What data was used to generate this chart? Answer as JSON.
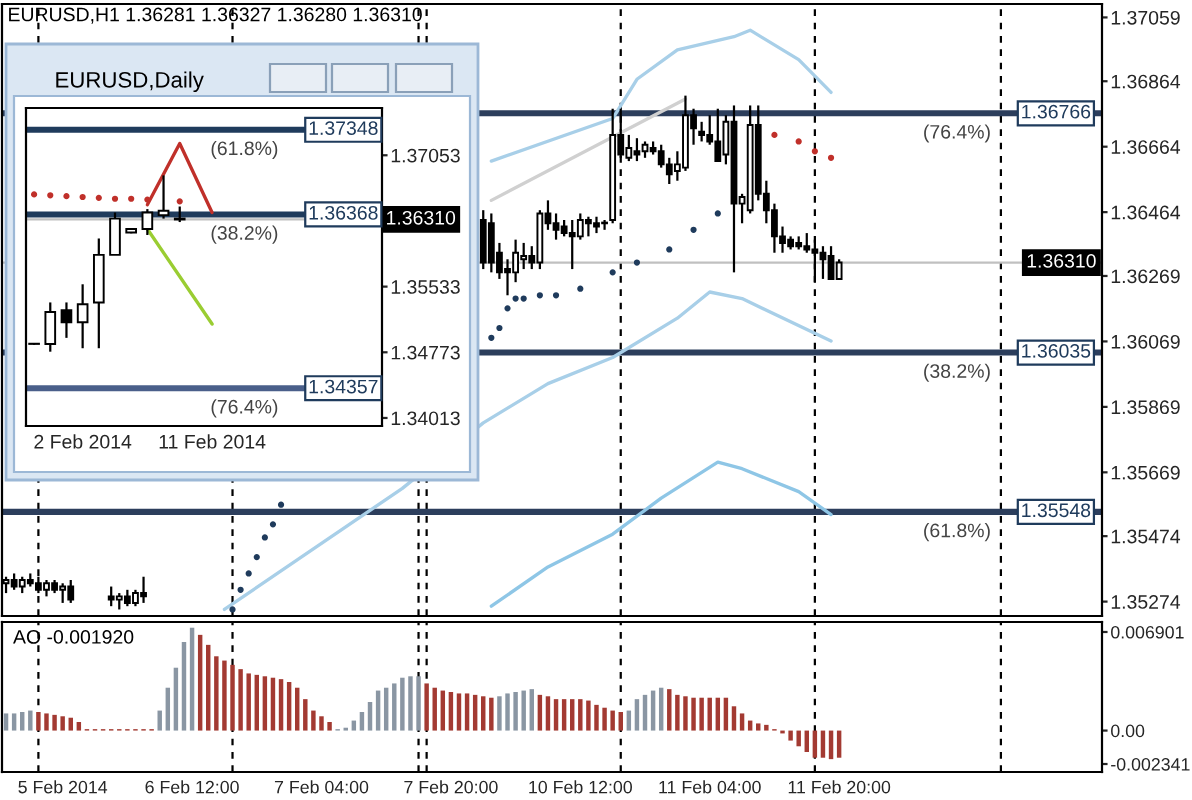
{
  "chart_data": [
    {
      "type": "candlestick",
      "title": "EURUSD,H1 1.36281 1.36327 1.36280 1.36310",
      "categories": [
        null,
        null,
        null,
        null,
        null,
        null,
        null,
        null,
        null,
        null,
        null,
        null,
        null,
        null,
        null,
        null,
        null,
        null,
        null,
        null,
        null,
        null,
        null,
        null,
        null,
        null,
        null,
        null,
        null,
        null,
        null,
        null,
        null,
        null,
        null,
        null,
        null,
        null,
        null,
        null,
        null,
        null,
        null,
        null,
        null,
        null,
        null,
        null,
        null,
        null,
        null,
        null,
        null,
        null,
        null,
        null,
        null,
        null,
        null,
        null,
        null,
        null,
        null,
        null,
        null,
        null,
        null,
        null,
        null,
        null,
        null,
        null,
        null,
        null,
        null,
        null,
        null,
        null,
        null,
        null,
        null,
        null,
        null,
        null,
        null,
        null,
        null,
        null,
        null,
        null,
        null,
        null,
        null,
        null,
        null,
        null,
        null,
        null,
        null,
        null,
        null,
        null,
        null,
        null,
        null,
        null,
        null,
        null,
        null,
        null,
        null,
        null,
        null,
        null,
        null,
        null,
        null,
        null,
        null,
        null,
        null,
        null,
        null,
        null,
        null,
        null,
        null,
        null,
        null,
        null,
        null,
        null,
        null,
        null,
        null,
        null
      ],
      "ohlc": [
        [
          1.3533,
          1.3535,
          1.353,
          1.3534
        ],
        [
          1.3534,
          1.3536,
          1.3531,
          1.3532
        ],
        [
          1.3532,
          1.3535,
          1.353,
          1.3534
        ],
        [
          1.3534,
          1.3536,
          1.3532,
          1.3533
        ],
        [
          1.3533,
          1.3535,
          1.353,
          1.3531
        ],
        [
          1.3531,
          1.3534,
          1.3529,
          1.3533
        ],
        [
          1.3533,
          1.3534,
          1.353,
          1.3531
        ],
        [
          1.3531,
          1.3533,
          1.3527,
          1.3532
        ],
        [
          1.3532,
          1.3534,
          1.3527,
          1.3528
        ],
        null,
        null,
        null,
        null,
        [
          1.3529,
          1.3532,
          1.3526,
          1.3528
        ],
        [
          1.3528,
          1.353,
          1.3525,
          1.3529
        ],
        [
          1.3529,
          1.3531,
          1.3526,
          1.3527
        ],
        [
          1.3527,
          1.3531,
          1.3526,
          1.353
        ],
        [
          1.353,
          1.3535,
          1.3527,
          1.3529
        ],
        null,
        null,
        null,
        null,
        null,
        null,
        null,
        null,
        null,
        null,
        null,
        null,
        null,
        null,
        null,
        null,
        null,
        null,
        null,
        null,
        null,
        null,
        null,
        null,
        null,
        null,
        null,
        null,
        null,
        null,
        null,
        null,
        null,
        null,
        null,
        null,
        null,
        null,
        null,
        null,
        null,
        [
          1.3644,
          1.3647,
          1.3629,
          1.3631
        ],
        [
          1.3643,
          1.3646,
          1.3628,
          1.3631
        ],
        [
          1.3634,
          1.3637,
          1.3626,
          1.3628
        ],
        [
          1.3629,
          1.3632,
          1.3621,
          1.3628
        ],
        [
          1.3628,
          1.3638,
          1.3625,
          1.3634
        ],
        [
          1.3632,
          1.3637,
          1.3629,
          1.3633
        ],
        [
          1.3633,
          1.3636,
          1.3629,
          1.3631
        ],
        [
          1.3631,
          1.3647,
          1.3629,
          1.3646
        ],
        [
          1.3646,
          1.365,
          1.3641,
          1.3643
        ],
        [
          1.3643,
          1.3646,
          1.3638,
          1.3641
        ],
        [
          1.3642,
          1.3644,
          1.3639,
          1.364
        ],
        [
          1.364,
          1.3644,
          1.3629,
          1.3639
        ],
        [
          1.3639,
          1.3646,
          1.3638,
          1.3644
        ],
        [
          1.3644,
          1.3645,
          1.3639,
          1.3643
        ],
        [
          1.3643,
          1.3645,
          1.364,
          1.3642
        ],
        [
          1.3643,
          1.3644,
          1.3641,
          1.3643
        ],
        [
          1.3644,
          1.3678,
          1.3643,
          1.367
        ],
        [
          1.367,
          1.3678,
          1.3663,
          1.3664
        ],
        [
          1.3663,
          1.367,
          1.3662,
          1.3666
        ],
        [
          1.3665,
          1.3669,
          1.3662,
          1.3664
        ],
        [
          1.3665,
          1.3668,
          1.3663,
          1.3667
        ],
        [
          1.3666,
          1.3668,
          1.3664,
          1.3665
        ],
        [
          1.3665,
          1.3667,
          1.366,
          1.3661
        ],
        [
          1.3661,
          1.3663,
          1.3655,
          1.3658
        ],
        [
          1.3659,
          1.3665,
          1.3656,
          1.3661
        ],
        [
          1.366,
          1.3682,
          1.3659,
          1.3676
        ],
        [
          1.3676,
          1.3678,
          1.3667,
          1.3672
        ],
        [
          1.3671,
          1.3674,
          1.3668,
          1.367
        ],
        [
          1.367,
          1.3676,
          1.3667,
          1.3668
        ],
        [
          1.3668,
          1.3678,
          1.3662,
          1.3662
        ],
        [
          1.3664,
          1.3676,
          1.3661,
          1.3674
        ],
        [
          1.3674,
          1.3679,
          1.3628,
          1.3649
        ],
        [
          1.3649,
          1.3652,
          1.3643,
          1.3651
        ],
        [
          1.3647,
          1.3679,
          1.3646,
          1.3673
        ],
        [
          1.3673,
          1.3679,
          1.365,
          1.3652
        ],
        [
          1.3652,
          1.3656,
          1.3643,
          1.3647
        ],
        [
          1.3647,
          1.3649,
          1.3634,
          1.3639
        ],
        [
          1.3639,
          1.3642,
          1.3634,
          1.3637
        ],
        [
          1.3638,
          1.3639,
          1.3635,
          1.3636
        ],
        [
          1.3637,
          1.3639,
          1.3635,
          1.3636
        ],
        [
          1.3636,
          1.364,
          1.3634,
          1.3635
        ],
        [
          1.3635,
          1.3638,
          1.3625,
          1.3634
        ],
        [
          1.3634,
          1.3636,
          1.3626,
          1.3632
        ],
        [
          1.3633,
          1.3636,
          1.3626,
          1.3626
        ],
        [
          1.3626,
          1.3632,
          1.3626,
          1.3631
        ],
        null,
        null,
        null,
        null,
        null,
        null,
        null,
        null,
        null,
        null,
        null,
        null,
        null,
        null,
        null,
        null,
        null,
        null,
        null,
        null,
        null,
        null,
        null,
        null,
        null,
        null,
        null,
        null,
        null,
        null,
        null,
        null
      ],
      "series": [
        {
          "type": "line",
          "color": "#d0d0d0",
          "values": [
            null,
            null,
            null,
            null,
            null,
            null,
            null,
            null,
            null,
            null,
            null,
            null,
            null,
            null,
            null,
            null,
            null,
            null,
            null,
            null,
            null,
            null,
            null,
            null,
            null,
            null,
            null,
            null,
            null,
            null,
            null,
            null,
            null,
            null,
            null,
            null,
            null,
            null,
            null,
            null,
            null,
            null,
            null,
            null,
            null,
            null,
            null,
            null,
            null,
            null,
            null,
            null,
            null,
            null,
            null,
            null,
            null,
            null,
            null,
            null,
            1.365,
            null,
            null,
            null,
            null,
            null,
            null,
            null,
            null,
            null,
            null,
            null,
            null,
            null,
            null,
            null,
            null,
            null,
            null,
            null,
            null,
            null,
            null,
            null,
            1.3681,
            null,
            null,
            null,
            null,
            null,
            null,
            null,
            null,
            null,
            null,
            null,
            null,
            null,
            null,
            null,
            null,
            null,
            null,
            null,
            null,
            null,
            null,
            null,
            null,
            null,
            null,
            null,
            null,
            null,
            null,
            null,
            null,
            null,
            null,
            null,
            null,
            null,
            null,
            null,
            null,
            null,
            null,
            null,
            null,
            null,
            null,
            null,
            null,
            null,
            null,
            null
          ]
        },
        {
          "type": "line",
          "color": "#a8cfe8",
          "values": [
            null,
            null,
            null,
            null,
            null,
            null,
            null,
            null,
            null,
            null,
            null,
            null,
            null,
            null,
            null,
            null,
            null,
            null,
            null,
            null,
            null,
            null,
            null,
            null,
            null,
            null,
            null,
            null,
            null,
            null,
            null,
            null,
            null,
            null,
            null,
            null,
            null,
            null,
            null,
            null,
            null,
            null,
            null,
            null,
            null,
            null,
            null,
            null,
            null,
            null,
            null,
            null,
            null,
            null,
            null,
            null,
            null,
            null,
            null,
            null,
            1.3662,
            null,
            null,
            null,
            null,
            null,
            null,
            null,
            null,
            null,
            null,
            null,
            null,
            null,
            null,
            1.3675,
            null,
            null,
            1.3687,
            null,
            null,
            null,
            null,
            1.3696,
            null,
            null,
            null,
            null,
            null,
            null,
            1.37,
            null,
            1.3702,
            null,
            null,
            null,
            null,
            null,
            1.3693,
            null,
            null,
            null,
            1.3683,
            null,
            null,
            null,
            null,
            null,
            null,
            null,
            null,
            null,
            null,
            null,
            null,
            null,
            null,
            null,
            null,
            null,
            null,
            null,
            null,
            null,
            null,
            null,
            null,
            null,
            null,
            null,
            null,
            null,
            null,
            null,
            null,
            null
          ]
        },
        {
          "type": "line",
          "color": "#a8cfe8",
          "values": [
            null,
            null,
            null,
            null,
            null,
            null,
            null,
            null,
            null,
            null,
            null,
            null,
            null,
            null,
            null,
            null,
            null,
            null,
            null,
            null,
            null,
            null,
            null,
            null,
            null,
            null,
            null,
            1.3525,
            null,
            null,
            null,
            null,
            null,
            null,
            null,
            null,
            null,
            null,
            null,
            null,
            null,
            null,
            null,
            null,
            null,
            null,
            null,
            null,
            null,
            1.3562,
            null,
            null,
            null,
            null,
            null,
            null,
            null,
            null,
            null,
            1.3582,
            null,
            null,
            null,
            null,
            null,
            null,
            null,
            1.3594,
            null,
            null,
            null,
            null,
            null,
            null,
            null,
            1.3602,
            null,
            null,
            null,
            null,
            null,
            null,
            null,
            1.3614,
            null,
            null,
            null,
            1.3622,
            null,
            null,
            null,
            1.362,
            null,
            null,
            null,
            null,
            null,
            null,
            null,
            null,
            null,
            null,
            1.3607,
            null,
            null,
            null,
            null,
            null,
            null,
            null,
            null,
            null,
            null,
            null,
            null,
            null,
            null,
            null,
            null,
            null,
            null,
            null,
            null,
            null,
            null,
            null,
            null,
            null,
            null,
            null,
            null,
            null,
            null,
            null,
            null,
            null
          ]
        },
        {
          "type": "line",
          "color": "#8ec6e6",
          "values": [
            null,
            null,
            null,
            null,
            null,
            null,
            null,
            null,
            null,
            null,
            null,
            null,
            null,
            null,
            null,
            null,
            null,
            null,
            null,
            null,
            null,
            null,
            null,
            null,
            null,
            null,
            null,
            null,
            null,
            null,
            null,
            null,
            null,
            null,
            null,
            null,
            null,
            null,
            null,
            null,
            null,
            null,
            null,
            null,
            null,
            null,
            null,
            null,
            null,
            null,
            null,
            null,
            null,
            null,
            null,
            null,
            null,
            null,
            null,
            null,
            1.3526,
            null,
            null,
            null,
            null,
            null,
            null,
            1.3538,
            null,
            null,
            null,
            null,
            null,
            null,
            null,
            1.3548,
            null,
            null,
            null,
            null,
            null,
            1.3559,
            null,
            null,
            null,
            null,
            null,
            null,
            1.357,
            null,
            null,
            1.3568,
            null,
            null,
            null,
            null,
            null,
            null,
            1.3561,
            null,
            null,
            null,
            1.3554,
            null,
            null,
            null,
            null,
            null,
            null,
            null,
            null,
            null,
            null,
            null,
            null,
            null,
            null,
            null,
            null,
            null,
            null,
            null,
            null,
            null,
            null,
            null,
            null,
            null,
            null,
            null,
            null,
            null,
            null,
            null,
            null,
            null
          ]
        },
        {
          "type": "scatter",
          "color": "#1f3b5c",
          "values": [
            null,
            null,
            null,
            null,
            null,
            null,
            null,
            null,
            null,
            null,
            null,
            null,
            null,
            null,
            null,
            null,
            null,
            null,
            null,
            null,
            null,
            null,
            null,
            null,
            null,
            null,
            null,
            null,
            1.3525,
            1.3531,
            1.3536,
            1.3541,
            1.3547,
            1.3551,
            1.3557,
            null,
            null,
            null,
            null,
            null,
            null,
            null,
            null,
            null,
            null,
            null,
            null,
            null,
            null,
            null,
            null,
            null,
            null,
            null,
            null,
            null,
            null,
            null,
            null,
            null,
            1.3608,
            1.3611,
            1.3617,
            1.362,
            1.362,
            null,
            1.3621,
            null,
            1.3621,
            null,
            null,
            1.3623,
            null,
            null,
            null,
            1.3628,
            null,
            null,
            1.3631,
            null,
            null,
            null,
            1.3635,
            null,
            null,
            1.3641,
            null,
            null,
            1.3646,
            null,
            null,
            null,
            null,
            null,
            null,
            null,
            null,
            null,
            null,
            null,
            null,
            null,
            null,
            null,
            null,
            null,
            null,
            null,
            null,
            null,
            null,
            null,
            null,
            null,
            null,
            null,
            null,
            null,
            null,
            null,
            null,
            null,
            null,
            null,
            null,
            null,
            null,
            null,
            null,
            null,
            null,
            null,
            null,
            null,
            null,
            null
          ]
        },
        {
          "type": "scatter",
          "color": "#c0302a",
          "values": [
            null,
            null,
            null,
            null,
            null,
            null,
            null,
            null,
            null,
            null,
            null,
            null,
            null,
            null,
            null,
            null,
            null,
            null,
            null,
            null,
            null,
            null,
            null,
            null,
            null,
            null,
            null,
            null,
            null,
            null,
            null,
            null,
            null,
            null,
            null,
            null,
            null,
            null,
            null,
            null,
            null,
            null,
            null,
            null,
            null,
            null,
            null,
            null,
            null,
            null,
            null,
            null,
            null,
            null,
            null,
            null,
            null,
            null,
            null,
            null,
            null,
            null,
            null,
            null,
            null,
            null,
            null,
            null,
            null,
            null,
            null,
            null,
            null,
            null,
            null,
            null,
            null,
            null,
            null,
            null,
            null,
            null,
            null,
            null,
            null,
            null,
            null,
            null,
            null,
            null,
            null,
            null,
            null,
            null,
            null,
            1.367,
            null,
            null,
            1.3668,
            null,
            1.3665,
            null,
            1.3663,
            null,
            null,
            null,
            null,
            null,
            null,
            null,
            null,
            null,
            null,
            null,
            null,
            null,
            null,
            null,
            null,
            null,
            null,
            null,
            null,
            null,
            null,
            null,
            null,
            null,
            null,
            null,
            null,
            null,
            null,
            null,
            null,
            null
          ]
        }
      ],
      "ref_lines": [
        {
          "axis": "y",
          "value": 1.3631,
          "label": "1.36310",
          "color": "#c0c0c0"
        },
        {
          "axis": "y",
          "value": 1.36766,
          "label": "1.36766",
          "color": "#2c3e5c"
        },
        {
          "axis": "y",
          "value": 1.36035,
          "label": "1.36035",
          "color": "#2c3e5c"
        },
        {
          "axis": "y",
          "value": 1.35548,
          "label": "1.35548",
          "color": "#2c3e5c"
        }
      ],
      "annotations": [
        {
          "text": "(76.4%)",
          "y": 1.36766
        },
        {
          "text": "(38.2%)",
          "y": 1.36035
        },
        {
          "text": "(61.8%)",
          "y": 1.35548
        }
      ],
      "ylim": [
        1.3523,
        1.371
      ],
      "yticks": [
        1.37059,
        1.36864,
        1.36664,
        1.36464,
        1.36269,
        1.36069,
        1.35869,
        1.35669,
        1.35474,
        1.35274
      ],
      "tick_labels": "y"
    },
    {
      "type": "candlestick",
      "title": "EURUSD,Daily",
      "categories": [
        null,
        null,
        null,
        "2 Feb 2014",
        null,
        null,
        null,
        null,
        null,
        null,
        null,
        "11 Feb 2014",
        null,
        null,
        null,
        null,
        null,
        null,
        null,
        null,
        null,
        null
      ],
      "ohlc": [
        [
          1.3487,
          1.3488,
          1.3486,
          1.3487
        ],
        [
          1.3487,
          1.3535,
          1.3478,
          1.3524
        ],
        [
          1.3526,
          1.3535,
          1.3494,
          1.3512
        ],
        [
          1.3512,
          1.3556,
          1.3482,
          1.3533
        ],
        [
          1.3535,
          1.3609,
          1.3482,
          1.359
        ],
        [
          1.359,
          1.3639,
          1.359,
          1.3632
        ],
        [
          1.3616,
          1.3621,
          1.3615,
          1.362
        ],
        [
          1.362,
          1.3643,
          1.3613,
          1.3639
        ],
        [
          1.3636,
          1.3682,
          1.3632,
          1.3641
        ],
        [
          1.3632,
          1.3646,
          1.3628,
          1.3631
        ],
        null,
        null,
        null,
        null,
        null,
        null,
        null,
        null,
        null,
        null,
        null,
        null
      ],
      "series": [
        {
          "type": "scatter",
          "color": "#c0302a",
          "values": [
            1.366,
            1.3659,
            1.3658,
            1.3657,
            1.3656,
            1.3655,
            1.3655,
            1.3654,
            null,
            1.3652,
            null,
            null,
            null,
            null,
            null,
            null,
            null,
            null,
            null,
            null,
            null,
            null
          ]
        },
        {
          "type": "line",
          "color": "#c0302a",
          "values": [
            null,
            null,
            null,
            null,
            null,
            null,
            null,
            1.3648,
            null,
            1.3719,
            null,
            1.3639,
            null,
            null,
            null,
            null,
            null,
            null,
            null,
            null,
            null,
            null
          ]
        },
        {
          "type": "line",
          "color": "#9acd32",
          "values": [
            null,
            null,
            null,
            null,
            null,
            null,
            null,
            1.362,
            null,
            null,
            null,
            1.351,
            null,
            null,
            null,
            null,
            null,
            null,
            null,
            null,
            null,
            null
          ]
        }
      ],
      "ref_lines": [
        {
          "axis": "y",
          "value": 1.3631,
          "label": "1.36310",
          "color": "#c0c0c0"
        },
        {
          "axis": "y",
          "value": 1.37348,
          "label": "1.37348",
          "color": "#1f3b5c"
        },
        {
          "axis": "y",
          "value": 1.36368,
          "label": "1.36368",
          "color": "#1f3b5c"
        },
        {
          "axis": "y",
          "value": 1.34357,
          "label": "1.34357",
          "color": "#4a5f8a"
        }
      ],
      "annotations": [
        {
          "text": "(61.8%)",
          "y": 1.37348
        },
        {
          "text": "(38.2%)",
          "y": 1.36368
        },
        {
          "text": "(76.4%)",
          "y": 1.34357
        }
      ],
      "ylim": [
        1.3392,
        1.376
      ],
      "yticks": [
        1.37053,
        1.35533,
        1.34773,
        1.34013
      ]
    },
    {
      "type": "bar",
      "title": "AO -0.001920",
      "categories": [
        null,
        null,
        null,
        null,
        null,
        null,
        null,
        "5 Feb 2014",
        null,
        null,
        null,
        null,
        null,
        null,
        null,
        null,
        null,
        null,
        null,
        null,
        null,
        null,
        null,
        "6 Feb 12:00",
        null,
        null,
        null,
        null,
        null,
        null,
        null,
        null,
        null,
        null,
        null,
        null,
        null,
        null,
        null,
        "7 Feb 04:00",
        null,
        null,
        null,
        null,
        null,
        null,
        null,
        null,
        null,
        null,
        null,
        null,
        null,
        null,
        null,
        "7 Feb 20:00",
        null,
        null,
        null,
        null,
        null,
        null,
        null,
        null,
        null,
        null,
        null,
        null,
        null,
        null,
        null,
        "10 Feb 12:00",
        null,
        null,
        null,
        null,
        null,
        null,
        null,
        null,
        null,
        null,
        null,
        null,
        null,
        null,
        null,
        "11 Feb 04:00",
        null,
        null,
        null,
        null,
        null,
        null,
        null,
        null,
        null,
        null,
        null,
        null,
        null,
        null,
        null,
        "11 Feb 20:00",
        null,
        null,
        null,
        null,
        null,
        null,
        null,
        null,
        null,
        null,
        null,
        null,
        null,
        null,
        null,
        null,
        null,
        null,
        null,
        null,
        null,
        null,
        null,
        null,
        null,
        null,
        null,
        null,
        null,
        null,
        null,
        null
      ],
      "values": [
        0.0012,
        0.0012,
        0.0013,
        0.0014,
        0.0013,
        0.0012,
        0.0011,
        0.001,
        0.0009,
        0.0006,
        0.0001,
        0.0001,
        0.0001,
        0.0001,
        0.0001,
        0.0001,
        0.0001,
        0.0001,
        0.0001,
        0.0014,
        0.003,
        0.0044,
        0.0062,
        0.0072,
        0.0067,
        0.006,
        0.0052,
        0.0049,
        0.0046,
        0.0043,
        0.004,
        0.0039,
        0.0038,
        0.0037,
        0.0036,
        0.0034,
        0.003,
        0.0022,
        0.0014,
        0.001,
        0.0006,
        0.0001,
        0.0002,
        0.0007,
        0.0013,
        0.002,
        0.0028,
        0.003,
        0.0033,
        0.0037,
        0.0038,
        0.0038,
        0.0033,
        0.003,
        0.0028,
        0.0027,
        0.0026,
        0.0026,
        0.0025,
        0.0024,
        0.0023,
        0.0024,
        0.0026,
        0.0027,
        0.0028,
        0.0029,
        0.0025,
        0.0024,
        0.0022,
        0.0022,
        0.0022,
        0.0022,
        0.0021,
        0.0018,
        0.0016,
        0.0014,
        0.0013,
        0.0014,
        0.0022,
        0.0025,
        0.0028,
        0.003,
        0.0029,
        0.0025,
        0.0024,
        0.0023,
        0.0023,
        0.0023,
        0.0023,
        0.0023,
        0.0017,
        0.0012,
        0.0007,
        0.0005,
        0.0004,
        0.0001,
        -0.0002,
        -0.0007,
        -0.0011,
        -0.0015,
        -0.0019,
        -0.0019,
        -0.002,
        -0.0019,
        null,
        null,
        null,
        null,
        null,
        null,
        null,
        null,
        null,
        null,
        null,
        null,
        null,
        null,
        null,
        null,
        null,
        null,
        null,
        null,
        null,
        null,
        null,
        null,
        null,
        null,
        null,
        null,
        null,
        null,
        null,
        null
      ],
      "colors": [
        "#8a96a3",
        "#8a96a3",
        "#8a96a3",
        "#8a96a3",
        "#a33a32",
        "#a33a32",
        "#a33a32",
        "#a33a32",
        "#a33a32",
        "#a33a32",
        "#a33a32",
        "#a33a32",
        "#a33a32",
        "#a33a32",
        "#a33a32",
        "#a33a32",
        "#a33a32",
        "#a33a32",
        "#a33a32",
        "#8a96a3",
        "#8a96a3",
        "#8a96a3",
        "#8a96a3",
        "#8a96a3",
        "#a33a32",
        "#a33a32",
        "#a33a32",
        "#a33a32",
        "#a33a32",
        "#a33a32",
        "#a33a32",
        "#a33a32",
        "#a33a32",
        "#a33a32",
        "#a33a32",
        "#a33a32",
        "#a33a32",
        "#a33a32",
        "#a33a32",
        "#a33a32",
        "#a33a32",
        "#8a96a3",
        "#8a96a3",
        "#8a96a3",
        "#8a96a3",
        "#8a96a3",
        "#8a96a3",
        "#8a96a3",
        "#8a96a3",
        "#8a96a3",
        "#8a96a3",
        "#8a96a3",
        "#a33a32",
        "#a33a32",
        "#a33a32",
        "#a33a32",
        "#a33a32",
        "#a33a32",
        "#a33a32",
        "#a33a32",
        "#a33a32",
        "#8a96a3",
        "#8a96a3",
        "#8a96a3",
        "#8a96a3",
        "#8a96a3",
        "#a33a32",
        "#a33a32",
        "#a33a32",
        "#a33a32",
        "#a33a32",
        "#a33a32",
        "#a33a32",
        "#a33a32",
        "#a33a32",
        "#a33a32",
        "#a33a32",
        "#8a96a3",
        "#8a96a3",
        "#8a96a3",
        "#8a96a3",
        "#8a96a3",
        "#a33a32",
        "#a33a32",
        "#a33a32",
        "#a33a32",
        "#a33a32",
        "#a33a32",
        "#a33a32",
        "#a33a32",
        "#a33a32",
        "#a33a32",
        "#a33a32",
        "#a33a32",
        "#a33a32",
        "#a33a32",
        "#a33a32",
        "#a33a32",
        "#a33a32",
        "#a33a32",
        "#a33a32",
        "#a33a32",
        "#a33a32",
        "#a33a32",
        null,
        null,
        null,
        null,
        null,
        null,
        null,
        null,
        null,
        null,
        null,
        null,
        null,
        null,
        null,
        null,
        null,
        null,
        null,
        null,
        null,
        null,
        null,
        null,
        null,
        null,
        null,
        null,
        null,
        null,
        null,
        null
      ],
      "ylim": [
        -0.0029,
        0.0076
      ],
      "yticks": [
        0.006901,
        {
          "value": 0,
          "label": "0.00"
        },
        -0.002341
      ]
    }
  ]
}
